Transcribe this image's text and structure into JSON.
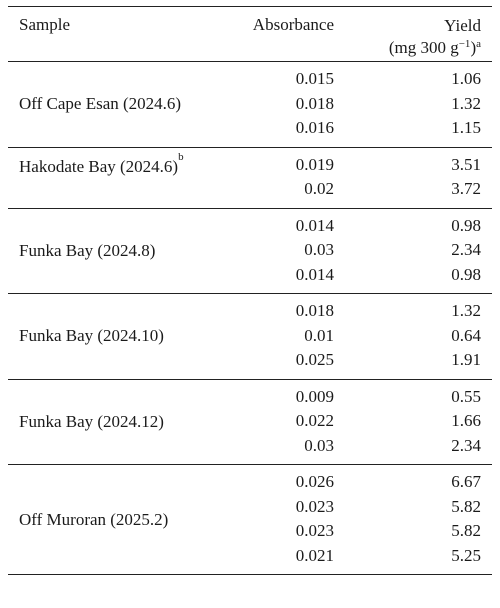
{
  "header": {
    "sample": "Sample",
    "absorbance": "Absorbance",
    "yield_line1": "Yield",
    "yield_line2": "(mg 300 g",
    "yield_exp": "−1",
    "yield_close": ")",
    "yield_note": "a"
  },
  "groups": [
    {
      "sample": "Off Cape Esan (2024.6)",
      "note": "",
      "rows": [
        {
          "absorbance": "0.015",
          "yield": "1.06"
        },
        {
          "absorbance": "0.018",
          "yield": "1.32"
        },
        {
          "absorbance": "0.016",
          "yield": "1.15"
        }
      ]
    },
    {
      "sample": "Hakodate Bay (2024.6)",
      "note": "b",
      "rows": [
        {
          "absorbance": "0.019",
          "yield": "3.51"
        },
        {
          "absorbance": "0.02",
          "yield": "3.72"
        }
      ]
    },
    {
      "sample": "Funka Bay (2024.8)",
      "note": "",
      "rows": [
        {
          "absorbance": "0.014",
          "yield": "0.98"
        },
        {
          "absorbance": "0.03",
          "yield": "2.34"
        },
        {
          "absorbance": "0.014",
          "yield": "0.98"
        }
      ]
    },
    {
      "sample": "Funka Bay (2024.10)",
      "note": "",
      "rows": [
        {
          "absorbance": "0.018",
          "yield": "1.32"
        },
        {
          "absorbance": "0.01",
          "yield": "0.64"
        },
        {
          "absorbance": "0.025",
          "yield": "1.91"
        }
      ]
    },
    {
      "sample": "Funka Bay (2024.12)",
      "note": "",
      "rows": [
        {
          "absorbance": "0.009",
          "yield": "0.55"
        },
        {
          "absorbance": "0.022",
          "yield": "1.66"
        },
        {
          "absorbance": "0.03",
          "yield": "2.34"
        }
      ]
    },
    {
      "sample": "Off Muroran (2025.2)",
      "note": "",
      "rows": [
        {
          "absorbance": "0.026",
          "yield": "6.67"
        },
        {
          "absorbance": "0.023",
          "yield": "5.82"
        },
        {
          "absorbance": "0.023",
          "yield": "5.82"
        },
        {
          "absorbance": "0.021",
          "yield": "5.25"
        }
      ]
    }
  ]
}
